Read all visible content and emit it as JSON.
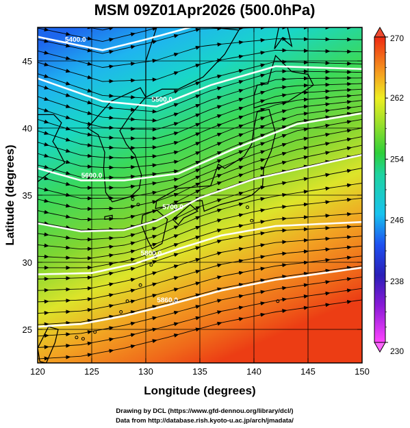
{
  "title": "MSM 09Z01Apr2026 (500.0hPa)",
  "xlabel": "Longitude (degrees)",
  "ylabel": "Latitude  (degrees)",
  "credit_line1": "Drawing by DCL (https://www.gfd-dennou.org/library/dcl/)",
  "credit_line2": "Data from http://database.rish.kyoto-u.ac.jp/arch/jmadata/",
  "chart_data": {
    "type": "heatmap",
    "variable": "temperature with wind streamlines and geopotential height contours",
    "xlim": [
      120,
      150
    ],
    "ylim": [
      22.5,
      47.5
    ],
    "x_ticks": [
      "120",
      "125",
      "130",
      "135",
      "140",
      "145",
      "150"
    ],
    "y_ticks": [
      "25",
      "30",
      "35",
      "40",
      "45"
    ],
    "colorbar": {
      "min": 230,
      "max": 270,
      "ticks": [
        "230",
        "238",
        "246",
        "254",
        "262",
        "270"
      ]
    },
    "grid": true,
    "contours": [
      {
        "label": "5400.0",
        "lat_at": [
          [
            120,
            46.8
          ],
          [
            126,
            45.8
          ],
          [
            130,
            46.6
          ],
          [
            135,
            47.7
          ]
        ]
      },
      {
        "label": "5500.0",
        "lat_at": [
          [
            120,
            43.7
          ],
          [
            126,
            42.0
          ],
          [
            131,
            41.6
          ],
          [
            136,
            43.2
          ],
          [
            142,
            44.6
          ],
          [
            150,
            44.4
          ]
        ]
      },
      {
        "label": "5600.0",
        "lat_at": [
          [
            120,
            37.0
          ],
          [
            124,
            36.1
          ],
          [
            128,
            36.1
          ],
          [
            133,
            36.6
          ],
          [
            138,
            38.4
          ],
          [
            144,
            40.3
          ],
          [
            150,
            41.1
          ]
        ]
      },
      {
        "label": "5700.0",
        "lat_at": [
          [
            120,
            32.9
          ],
          [
            124,
            32.3
          ],
          [
            128,
            32.4
          ],
          [
            131,
            33.1
          ],
          [
            135,
            34.8
          ],
          [
            140,
            36.2
          ],
          [
            145,
            37.1
          ],
          [
            150,
            38.0
          ]
        ]
      },
      {
        "label": "5800.0",
        "lat_at": [
          [
            120,
            29.1
          ],
          [
            125,
            29.2
          ],
          [
            129,
            29.9
          ],
          [
            133,
            31.0
          ],
          [
            137,
            32.0
          ],
          [
            142,
            32.7
          ],
          [
            150,
            33.0
          ]
        ]
      },
      {
        "label": "5860.0",
        "lat_at": [
          [
            120,
            25.2
          ],
          [
            124,
            25.4
          ],
          [
            128,
            26.0
          ],
          [
            132,
            26.8
          ],
          [
            137,
            27.9
          ],
          [
            142,
            28.7
          ],
          [
            150,
            29.6
          ]
        ]
      }
    ]
  }
}
